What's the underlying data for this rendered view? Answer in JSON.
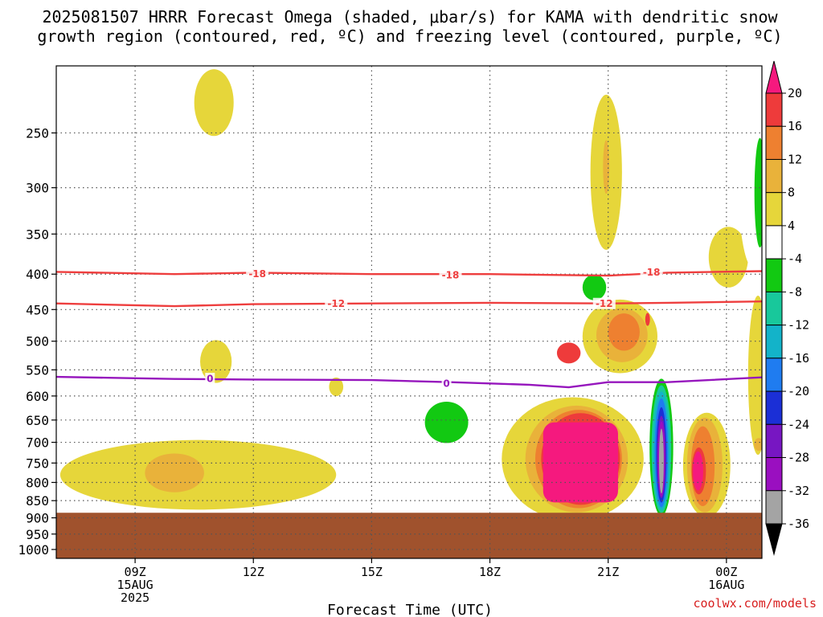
{
  "chart_data": {
    "type": "heatmap",
    "title_line1": "2025081507 HRRR Forecast Omega (shaded, μbar/s) for KAMA with dendritic snow",
    "title_line2": "growth region (contoured, red, ºC) and freezing level (contoured, purple, ºC)",
    "xlabel": "Forecast Time (UTC)",
    "ylabel": "",
    "x_ticks": [
      {
        "hour": 9,
        "lines": [
          "09Z",
          "15AUG",
          "2025"
        ]
      },
      {
        "hour": 12,
        "lines": [
          "12Z"
        ]
      },
      {
        "hour": 15,
        "lines": [
          "15Z"
        ]
      },
      {
        "hour": 18,
        "lines": [
          "18Z"
        ]
      },
      {
        "hour": 21,
        "lines": [
          "21Z"
        ]
      },
      {
        "hour": 24,
        "lines": [
          "00Z",
          "16AUG"
        ]
      }
    ],
    "x_range_hours": [
      7.0,
      24.9
    ],
    "y_ticks": [
      250,
      300,
      350,
      400,
      450,
      500,
      550,
      600,
      650,
      700,
      750,
      800,
      850,
      900,
      950,
      1000
    ],
    "y_range_mb": [
      200,
      1030
    ],
    "y_scale": "log",
    "grid": true,
    "surface_below_mb": 885,
    "colorbar": {
      "levels": [
        20,
        16,
        12,
        8,
        4,
        -4,
        -8,
        -12,
        -16,
        -20,
        -24,
        -28,
        -32,
        -36
      ],
      "colors": [
        "#f5197e",
        "#ee3b3b",
        "#ee8030",
        "#e9b23a",
        "#e6d63a",
        "#ffffff",
        "#12c912",
        "#18c89b",
        "#13b3c9",
        "#1f7cf0",
        "#1b2fd6",
        "#7716c2",
        "#9a0fc0",
        "#a4a4a4",
        "#000000"
      ]
    },
    "series": [
      {
        "name": "-18",
        "type": "isotherm",
        "color": "#ee3e3e",
        "points": [
          [
            7.0,
            397
          ],
          [
            10.0,
            400
          ],
          [
            12.0,
            398
          ],
          [
            15.0,
            400
          ],
          [
            18.0,
            400
          ],
          [
            21.0,
            402
          ],
          [
            22.5,
            398
          ],
          [
            24.9,
            396
          ]
        ]
      },
      {
        "name": "-12",
        "type": "isotherm",
        "color": "#ee3e3e",
        "points": [
          [
            7.0,
            441
          ],
          [
            10.0,
            445
          ],
          [
            12.0,
            442
          ],
          [
            15.0,
            441
          ],
          [
            18.0,
            440
          ],
          [
            21.0,
            441
          ],
          [
            22.5,
            440
          ],
          [
            24.9,
            438
          ]
        ]
      },
      {
        "name": "0",
        "type": "freezing level",
        "color": "#9616bd",
        "points": [
          [
            7.0,
            563
          ],
          [
            10.0,
            567
          ],
          [
            12.0,
            568
          ],
          [
            15.0,
            569
          ],
          [
            17.0,
            573
          ],
          [
            19.0,
            578
          ],
          [
            20.0,
            583
          ],
          [
            21.0,
            573
          ],
          [
            22.5,
            573
          ],
          [
            24.9,
            564
          ]
        ]
      }
    ],
    "contour_labels": [
      {
        "text": "-18",
        "x": 12.1,
        "y": 399,
        "series": "-18"
      },
      {
        "text": "-18",
        "x": 17.0,
        "y": 401,
        "series": "-18"
      },
      {
        "text": "-18",
        "x": 22.1,
        "y": 397,
        "series": "-18"
      },
      {
        "text": "-12",
        "x": 14.1,
        "y": 441,
        "series": "-12"
      },
      {
        "text": "-12",
        "x": 20.9,
        "y": 441,
        "series": "-12"
      },
      {
        "text": "0",
        "x": 10.9,
        "y": 566,
        "series": "0"
      },
      {
        "text": "0",
        "x": 16.9,
        "y": 575,
        "series": "0"
      }
    ],
    "omega_features": [
      {
        "shape": "ellipse",
        "cx": 11.0,
        "cy": 226,
        "rx": 0.5,
        "ry": 25,
        "level": 4
      },
      {
        "shape": "ellipse",
        "cx": 20.95,
        "cy": 285,
        "rx": 0.4,
        "ry": 72,
        "level": 4
      },
      {
        "shape": "ellipse",
        "cx": 20.95,
        "cy": 280,
        "rx": 0.08,
        "ry": 25,
        "level": 8
      },
      {
        "shape": "ellipse",
        "cx": 24.05,
        "cy": 378,
        "rx": 0.5,
        "ry": 38,
        "level": 4
      },
      {
        "shape": "ellipse",
        "cx": 21.75,
        "cy": 338,
        "rx": 0.25,
        "ry": 22,
        "level": -4
      },
      {
        "shape": "ellipse",
        "cx": 24.65,
        "cy": 260,
        "rx": 0.4,
        "ry": 100,
        "level": -4
      },
      {
        "shape": "ellipse",
        "cx": 24.85,
        "cy": 305,
        "rx": 0.14,
        "ry": 55,
        "level": -8
      },
      {
        "shape": "ellipse",
        "cx": 24.8,
        "cy": 560,
        "rx": 0.25,
        "ry": 145,
        "level": 4
      },
      {
        "shape": "ellipse",
        "cx": 20.65,
        "cy": 410,
        "rx": 0.6,
        "ry": 40,
        "level": -4
      },
      {
        "shape": "ellipse",
        "cx": 20.65,
        "cy": 418,
        "rx": 0.3,
        "ry": 18,
        "level": -8
      },
      {
        "shape": "ellipse",
        "cx": 21.3,
        "cy": 492,
        "rx": 0.95,
        "ry": 60,
        "level": 4
      },
      {
        "shape": "ellipse",
        "cx": 21.35,
        "cy": 490,
        "rx": 0.65,
        "ry": 44,
        "level": 8
      },
      {
        "shape": "ellipse",
        "cx": 21.4,
        "cy": 485,
        "rx": 0.4,
        "ry": 30,
        "level": 12
      },
      {
        "shape": "ellipse",
        "cx": 20.0,
        "cy": 520,
        "rx": 0.3,
        "ry": 18,
        "level": 16
      },
      {
        "shape": "ellipse",
        "cx": 22.0,
        "cy": 465,
        "rx": 0.06,
        "ry": 10,
        "level": 16
      },
      {
        "shape": "ellipse",
        "cx": 9.9,
        "cy": 485,
        "rx": 0.2,
        "ry": 30,
        "level": -4
      },
      {
        "shape": "ellipse",
        "cx": 11.05,
        "cy": 535,
        "rx": 0.4,
        "ry": 38,
        "level": 4
      },
      {
        "shape": "ellipse",
        "cx": 14.1,
        "cy": 582,
        "rx": 0.18,
        "ry": 18,
        "level": 4
      },
      {
        "shape": "ellipse",
        "cx": 22.9,
        "cy": 500,
        "rx": 0.08,
        "ry": 18,
        "level": -4
      },
      {
        "shape": "ellipse",
        "cx": 16.9,
        "cy": 650,
        "rx": 1.0,
        "ry": 75,
        "level": -4
      },
      {
        "shape": "ellipse",
        "cx": 16.9,
        "cy": 655,
        "rx": 0.55,
        "ry": 45,
        "level": -8
      },
      {
        "shape": "ellipse",
        "cx": 12.7,
        "cy": 690,
        "rx": 0.55,
        "ry": 45,
        "level": -4
      },
      {
        "shape": "ellipse",
        "cx": 14.8,
        "cy": 700,
        "rx": 1.1,
        "ry": 45,
        "level": -4
      },
      {
        "shape": "ellipse",
        "cx": 10.6,
        "cy": 780,
        "rx": 3.5,
        "ry": 90,
        "level": 4
      },
      {
        "shape": "ellipse",
        "cx": 10.0,
        "cy": 775,
        "rx": 0.75,
        "ry": 50,
        "level": 8
      },
      {
        "shape": "ellipse",
        "cx": 20.1,
        "cy": 740,
        "rx": 1.8,
        "ry": 150,
        "level": 4
      },
      {
        "shape": "ellipse",
        "cx": 20.2,
        "cy": 740,
        "rx": 1.3,
        "ry": 130,
        "level": 8
      },
      {
        "shape": "ellipse",
        "cx": 20.25,
        "cy": 740,
        "rx": 1.1,
        "ry": 120,
        "level": 12
      },
      {
        "shape": "ellipse",
        "cx": 20.3,
        "cy": 740,
        "rx": 1.0,
        "ry": 112,
        "level": 16
      },
      {
        "shape": "rect",
        "x0": 19.35,
        "x1": 21.25,
        "y0": 655,
        "y1": 855,
        "level": 20
      },
      {
        "shape": "ellipse",
        "cx": 22.35,
        "cy": 710,
        "rx": 0.35,
        "ry": 170,
        "level": -4
      },
      {
        "shape": "ellipse",
        "cx": 22.35,
        "cy": 712,
        "rx": 0.3,
        "ry": 160,
        "level": -8
      },
      {
        "shape": "ellipse",
        "cx": 22.35,
        "cy": 716,
        "rx": 0.25,
        "ry": 150,
        "level": -12
      },
      {
        "shape": "ellipse",
        "cx": 22.35,
        "cy": 720,
        "rx": 0.21,
        "ry": 140,
        "level": -16
      },
      {
        "shape": "ellipse",
        "cx": 22.35,
        "cy": 725,
        "rx": 0.17,
        "ry": 130,
        "level": -20
      },
      {
        "shape": "ellipse",
        "cx": 22.35,
        "cy": 730,
        "rx": 0.13,
        "ry": 115,
        "level": -24
      },
      {
        "shape": "ellipse",
        "cx": 22.35,
        "cy": 735,
        "rx": 0.11,
        "ry": 100,
        "level": -28
      },
      {
        "shape": "ellipse",
        "cx": 22.35,
        "cy": 740,
        "rx": 0.09,
        "ry": 92,
        "level": -32
      },
      {
        "shape": "ellipse",
        "cx": 22.35,
        "cy": 745,
        "rx": 0.06,
        "ry": 80,
        "level": -36
      },
      {
        "shape": "ellipse",
        "cx": 23.5,
        "cy": 755,
        "rx": 0.6,
        "ry": 130,
        "level": 4
      },
      {
        "shape": "ellipse",
        "cx": 23.45,
        "cy": 755,
        "rx": 0.45,
        "ry": 118,
        "level": 8
      },
      {
        "shape": "ellipse",
        "cx": 23.4,
        "cy": 758,
        "rx": 0.3,
        "ry": 100,
        "level": 12
      },
      {
        "shape": "ellipse",
        "cx": 23.3,
        "cy": 770,
        "rx": 0.18,
        "ry": 60,
        "level": 16
      },
      {
        "shape": "ellipse",
        "cx": 23.28,
        "cy": 770,
        "rx": 0.13,
        "ry": 50,
        "level": 20
      },
      {
        "shape": "ellipse",
        "cx": 24.82,
        "cy": 705,
        "rx": 0.12,
        "ry": 15,
        "level": 8
      },
      {
        "shape": "ellipse",
        "cx": 24.75,
        "cy": 830,
        "rx": 0.05,
        "ry": 12,
        "level": -4
      }
    ],
    "credit": "coolwx.com/models"
  }
}
